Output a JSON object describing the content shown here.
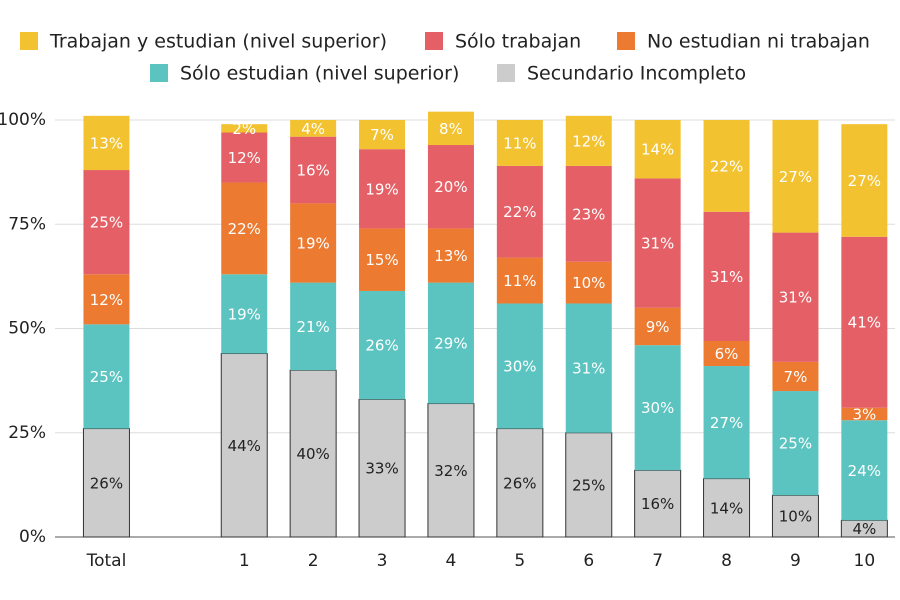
{
  "chart_data": {
    "type": "stacked-bar",
    "categories": [
      "Total",
      null,
      "1",
      "2",
      "3",
      "4",
      "5",
      "6",
      "7",
      "8",
      "9",
      "10"
    ],
    "series": [
      {
        "name": "Trabajan y estudian (nivel superior)",
        "color": "#f2c230",
        "values": [
          13,
          null,
          2,
          4,
          7,
          8,
          11,
          12,
          14,
          22,
          27,
          27
        ],
        "value_labels": [
          "13%",
          null,
          "2%",
          "4%",
          "7%",
          "8%",
          "11%",
          "12%",
          "14%",
          "22%",
          "27%",
          "27%"
        ]
      },
      {
        "name": "Sólo trabajan",
        "color": "#e46066",
        "values": [
          25,
          null,
          12,
          16,
          19,
          20,
          22,
          23,
          31,
          31,
          31,
          41
        ],
        "value_labels": [
          "25%",
          null,
          "12%",
          "16%",
          "19%",
          "20%",
          "22%",
          "23%",
          "31%",
          "31%",
          "31%",
          "41%"
        ]
      },
      {
        "name": "No estudian ni trabajan",
        "color": "#ec7a30",
        "values": [
          12,
          null,
          22,
          19,
          15,
          13,
          11,
          10,
          9,
          6,
          7,
          3
        ],
        "value_labels": [
          "12%",
          null,
          "22%",
          "19%",
          "15%",
          "13%",
          "11%",
          "10%",
          "9%",
          "6%",
          "7%",
          "3%"
        ]
      },
      {
        "name": "Sólo estudian (nivel superior)",
        "color": "#5bc4c1",
        "values": [
          25,
          null,
          19,
          21,
          26,
          29,
          30,
          31,
          30,
          27,
          25,
          24
        ],
        "value_labels": [
          "25%",
          null,
          "19%",
          "21%",
          "26%",
          "29%",
          "30%",
          "31%",
          "30%",
          "27%",
          "25%",
          "24%"
        ]
      },
      {
        "name": "Secundario Incompleto",
        "color": "#cccccc",
        "values": [
          26,
          null,
          44,
          40,
          33,
          32,
          26,
          25,
          16,
          14,
          10,
          4
        ],
        "value_labels": [
          "26%",
          null,
          "44%",
          "40%",
          "33%",
          "32%",
          "26%",
          "25%",
          "16%",
          "14%",
          "10%",
          "4%"
        ]
      }
    ],
    "ylim": [
      0,
      100
    ],
    "yticks": [
      {
        "value": 0,
        "label": "0%"
      },
      {
        "value": 25,
        "label": "25%"
      },
      {
        "value": 50,
        "label": "50%"
      },
      {
        "value": 75,
        "label": "75%"
      },
      {
        "value": 100,
        "label": "100%"
      }
    ],
    "grid": true
  }
}
